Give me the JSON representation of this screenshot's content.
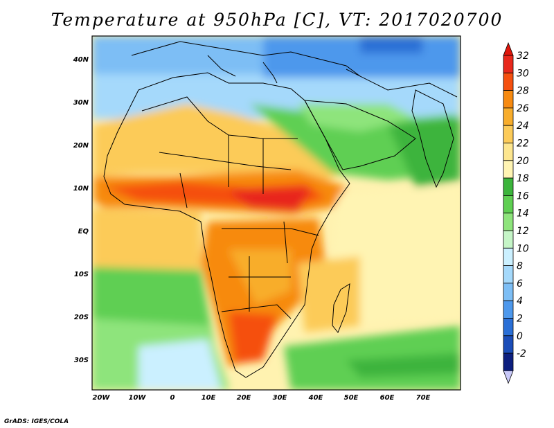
{
  "title": "Temperature at 950hPa [C], VT: 2017020700",
  "credit": "GrADS: IGES/COLA",
  "map": {
    "lon_range": [
      -23,
      80
    ],
    "lat_range": [
      -37,
      45
    ],
    "lat_labels": [
      "40N",
      "30N",
      "20N",
      "10N",
      "EQ",
      "10S",
      "20S",
      "30S"
    ],
    "lon_labels": [
      "20W",
      "10W",
      "0",
      "10E",
      "20E",
      "30E",
      "40E",
      "50E",
      "60E",
      "70E"
    ]
  },
  "colorbar": {
    "levels": [
      "32",
      "30",
      "28",
      "26",
      "24",
      "22",
      "20",
      "18",
      "16",
      "14",
      "12",
      "10",
      "8",
      "6",
      "4",
      "2",
      "0",
      "-2"
    ],
    "colors": [
      "#e8281c",
      "#f5500f",
      "#f78a11",
      "#f8ad2c",
      "#fccb59",
      "#fde68f",
      "#fff4b3",
      "#3cb43c",
      "#5fcf52",
      "#8ee47c",
      "#c5f5c7",
      "#cbf0ff",
      "#a5d9fb",
      "#7dbef5",
      "#4d98ec",
      "#2a6fd6",
      "#1b4db8",
      "#0d1f7f"
    ],
    "top_color": "#e0160b",
    "bottom_color": "#c8c8f8"
  }
}
